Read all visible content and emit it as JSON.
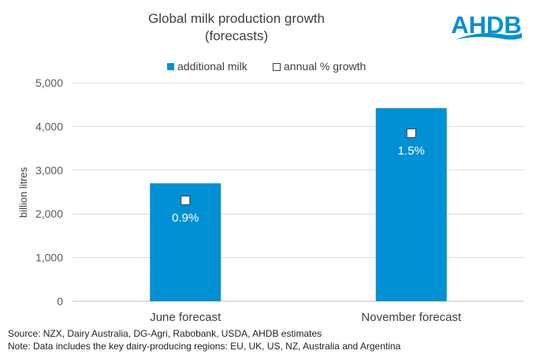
{
  "chart_data": {
    "type": "bar",
    "title": "Global milk production growth",
    "subtitle": "(forecasts)",
    "categories": [
      "June forecast",
      "November forecast"
    ],
    "series": [
      {
        "name": "additional milk",
        "type": "bar",
        "values": [
          2700,
          4420
        ],
        "color": "#0090D4"
      },
      {
        "name": "annual % growth",
        "type": "marker",
        "values": [
          0.9,
          1.5
        ],
        "labels": [
          "0.9%",
          "1.5%"
        ],
        "color": "#ffffff"
      }
    ],
    "ylabel": "billion litres",
    "ylim": [
      0,
      5000
    ],
    "yticks": [
      0,
      1000,
      2000,
      3000,
      4000,
      5000
    ],
    "ytick_labels": [
      "0",
      "1,000",
      "2,000",
      "3,000",
      "4,000",
      "5,000"
    ],
    "grid": true,
    "legend": "top"
  },
  "logo": {
    "text": "AHDB",
    "color": "#0090D4"
  },
  "footer": {
    "source": "Source: NZX,  Dairy Australia, DG-Agri, Rabobank,  USDA, AHDB estimates",
    "note": "Note: Data includes the key dairy-producing  regions: EU, UK, US, NZ, Australia and Argentina"
  }
}
